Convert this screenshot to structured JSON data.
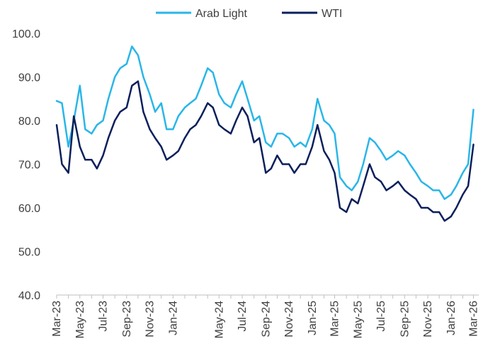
{
  "chart_data": {
    "type": "line",
    "title": "",
    "xlabel": "",
    "ylabel": "",
    "ylim": [
      40,
      100
    ],
    "yticks": [
      "40.0",
      "50.0",
      "60.0",
      "70.0",
      "80.0",
      "90.0",
      "100.0"
    ],
    "xticks": [
      "Mar-23",
      "May-23",
      "Jul-23",
      "Sep-23",
      "Nov-23",
      "Jan-24",
      "May-24",
      "Jul-24",
      "Sep-24",
      "Nov-24",
      "Jan-25",
      "Mar-25",
      "May-25",
      "Jul-25",
      "Sep-25",
      "Nov-25",
      "Jan-26",
      "Mar-26"
    ],
    "grid": false,
    "legend_position": "top-center",
    "colors": {
      "Arab Light": "#29b6e8",
      "WTI": "#0b1f5c",
      "axis": "#bfbfbf"
    },
    "series": [
      {
        "name": "Arab Light",
        "x": [
          "2023-03-01",
          "2023-03-15",
          "2023-04-01",
          "2023-04-15",
          "2023-05-01",
          "2023-05-15",
          "2023-06-01",
          "2023-06-15",
          "2023-07-01",
          "2023-07-15",
          "2023-08-01",
          "2023-08-15",
          "2023-09-01",
          "2023-09-15",
          "2023-10-01",
          "2023-10-15",
          "2023-11-01",
          "2023-11-15",
          "2023-12-01",
          "2023-12-15",
          "2024-01-01",
          "2024-01-15",
          "2024-02-01",
          "2024-02-15",
          "2024-03-01",
          "2024-03-15",
          "2024-04-01",
          "2024-04-15",
          "2024-05-01",
          "2024-05-15",
          "2024-06-01",
          "2024-06-15",
          "2024-07-01",
          "2024-07-15",
          "2024-08-01",
          "2024-08-15",
          "2024-09-01",
          "2024-09-15",
          "2024-10-01",
          "2024-10-15",
          "2024-11-01",
          "2024-11-15",
          "2024-12-01",
          "2024-12-15",
          "2025-01-01",
          "2025-01-15",
          "2025-02-01",
          "2025-02-15",
          "2025-03-01",
          "2025-03-15",
          "2025-04-01",
          "2025-04-15",
          "2025-05-01",
          "2025-05-15",
          "2025-06-01",
          "2025-06-15",
          "2025-07-01",
          "2025-07-15",
          "2025-08-01",
          "2025-08-15",
          "2025-09-01",
          "2025-09-15",
          "2025-10-01",
          "2025-10-15",
          "2025-11-01",
          "2025-11-15",
          "2025-12-01",
          "2025-12-15",
          "2026-01-01",
          "2026-01-15",
          "2026-02-01",
          "2026-02-15",
          "2026-03-01"
        ],
        "values": [
          84.5,
          84,
          74,
          80,
          88,
          78,
          77,
          79,
          80,
          85,
          90,
          92,
          93,
          97,
          95,
          90,
          86,
          82,
          84,
          78,
          78,
          81,
          83,
          84,
          85,
          88,
          92,
          91,
          86,
          84,
          83,
          86,
          89,
          85,
          80,
          81,
          75,
          74,
          77,
          77,
          76,
          74,
          75,
          74,
          78,
          85,
          80,
          79,
          77,
          67,
          65,
          64,
          66,
          70,
          76,
          75,
          73,
          71,
          72,
          73,
          72,
          70,
          68,
          66,
          65,
          64,
          64,
          62,
          63,
          65,
          68,
          70,
          82.5
        ]
      },
      {
        "name": "WTI",
        "x": [
          "2023-03-01",
          "2023-03-15",
          "2023-04-01",
          "2023-04-15",
          "2023-05-01",
          "2023-05-15",
          "2023-06-01",
          "2023-06-15",
          "2023-07-01",
          "2023-07-15",
          "2023-08-01",
          "2023-08-15",
          "2023-09-01",
          "2023-09-15",
          "2023-10-01",
          "2023-10-15",
          "2023-11-01",
          "2023-11-15",
          "2023-12-01",
          "2023-12-15",
          "2024-01-01",
          "2024-01-15",
          "2024-02-01",
          "2024-02-15",
          "2024-03-01",
          "2024-03-15",
          "2024-04-01",
          "2024-04-15",
          "2024-05-01",
          "2024-05-15",
          "2024-06-01",
          "2024-06-15",
          "2024-07-01",
          "2024-07-15",
          "2024-08-01",
          "2024-08-15",
          "2024-09-01",
          "2024-09-15",
          "2024-10-01",
          "2024-10-15",
          "2024-11-01",
          "2024-11-15",
          "2024-12-01",
          "2024-12-15",
          "2025-01-01",
          "2025-01-15",
          "2025-02-01",
          "2025-02-15",
          "2025-03-01",
          "2025-03-15",
          "2025-04-01",
          "2025-04-15",
          "2025-05-01",
          "2025-05-15",
          "2025-06-01",
          "2025-06-15",
          "2025-07-01",
          "2025-07-15",
          "2025-08-01",
          "2025-08-15",
          "2025-09-01",
          "2025-09-15",
          "2025-10-01",
          "2025-10-15",
          "2025-11-01",
          "2025-11-15",
          "2025-12-01",
          "2025-12-15",
          "2026-01-01",
          "2026-01-15",
          "2026-02-01",
          "2026-02-15",
          "2026-03-01"
        ],
        "values": [
          79,
          70,
          68,
          81,
          74,
          71,
          71,
          69,
          72,
          76,
          80,
          82,
          83,
          88,
          89,
          82,
          78,
          76,
          74,
          71,
          72,
          73,
          76,
          78,
          79,
          81,
          84,
          83,
          79,
          78,
          77,
          80,
          83,
          81,
          75,
          76,
          68,
          69,
          72,
          70,
          70,
          68,
          70,
          70,
          74,
          79,
          73,
          71,
          68,
          60,
          59,
          62,
          61,
          65,
          70,
          67,
          66,
          64,
          65,
          66,
          64,
          63,
          62,
          60,
          60,
          59,
          59,
          57,
          58,
          60,
          63,
          65,
          74.5
        ]
      }
    ]
  }
}
